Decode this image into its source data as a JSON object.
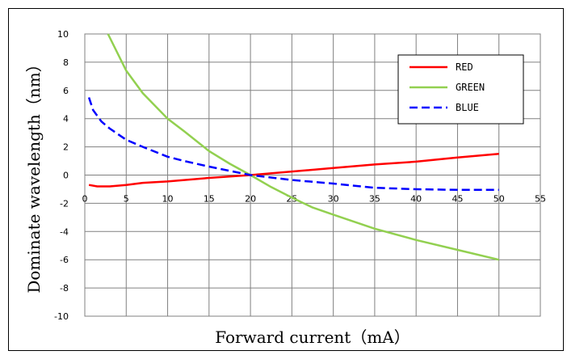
{
  "chart_data": {
    "type": "line",
    "title": "",
    "xlabel": "Forward current（mA）",
    "ylabel": "Dominate wavelength（nm）",
    "xlim": [
      0,
      55
    ],
    "ylim": [
      -10,
      10
    ],
    "x_ticks": [
      "0",
      "5",
      "10",
      "15",
      "20",
      "25",
      "30",
      "35",
      "40",
      "45",
      "50",
      "55"
    ],
    "y_ticks": [
      "10",
      "8",
      "6",
      "4",
      "2",
      "0",
      "-2",
      "-4",
      "-6",
      "-8",
      "-10"
    ],
    "grid": true,
    "legend_position": "top-right",
    "series": [
      {
        "name": "RED",
        "color": "#ff0000",
        "style": "solid",
        "points": [
          [
            0.5,
            -0.7
          ],
          [
            1.5,
            -0.8
          ],
          [
            3,
            -0.8
          ],
          [
            5,
            -0.7
          ],
          [
            7,
            -0.55
          ],
          [
            10,
            -0.45
          ],
          [
            15,
            -0.2
          ],
          [
            20,
            0
          ],
          [
            25,
            0.25
          ],
          [
            30,
            0.5
          ],
          [
            35,
            0.75
          ],
          [
            40,
            0.95
          ],
          [
            45,
            1.25
          ],
          [
            50,
            1.5
          ]
        ]
      },
      {
        "name": "GREEN",
        "color": "#92d050",
        "style": "solid",
        "points": [
          [
            2.8,
            10
          ],
          [
            5,
            7.4
          ],
          [
            7,
            5.8
          ],
          [
            10,
            4
          ],
          [
            12,
            3.1
          ],
          [
            15,
            1.7
          ],
          [
            17.5,
            0.8
          ],
          [
            20,
            0
          ],
          [
            22.5,
            -0.85
          ],
          [
            25,
            -1.6
          ],
          [
            27.5,
            -2.3
          ],
          [
            30,
            -2.8
          ],
          [
            35,
            -3.8
          ],
          [
            40,
            -4.6
          ],
          [
            45,
            -5.3
          ],
          [
            50,
            -6
          ]
        ]
      },
      {
        "name": "BLUE",
        "color": "#0000ff",
        "style": "dashed",
        "points": [
          [
            0.5,
            5.5
          ],
          [
            1,
            4.6
          ],
          [
            2,
            3.8
          ],
          [
            3,
            3.3
          ],
          [
            5,
            2.5
          ],
          [
            7,
            2
          ],
          [
            10,
            1.3
          ],
          [
            12,
            1
          ],
          [
            15,
            0.6
          ],
          [
            20,
            0
          ],
          [
            25,
            -0.35
          ],
          [
            30,
            -0.6
          ],
          [
            35,
            -0.9
          ],
          [
            40,
            -1
          ],
          [
            45,
            -1.05
          ],
          [
            50,
            -1.05
          ]
        ]
      }
    ]
  }
}
